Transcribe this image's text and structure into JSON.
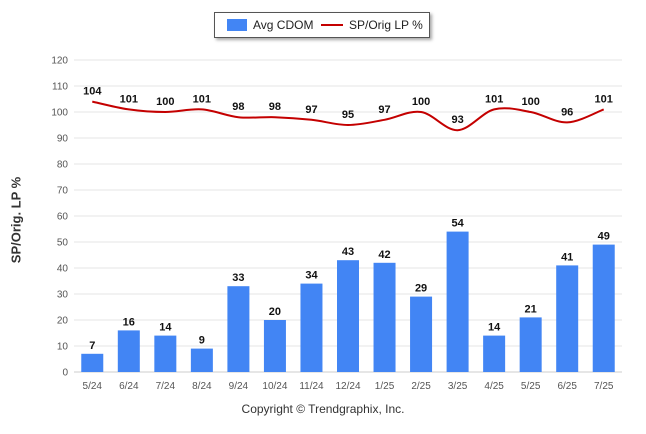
{
  "legend": {
    "bar_label": "Avg CDOM",
    "line_label": "SP/Orig LP %"
  },
  "credits": "Copyright © Trendgraphix, Inc.",
  "colors": {
    "bar": "#4285f4",
    "line": "#c40000",
    "grid": "#e6e6e6",
    "axis_text": "#555555",
    "label_text": "#111111"
  },
  "chart_data": {
    "type": "bar",
    "categories": [
      "5/24",
      "6/24",
      "7/24",
      "8/24",
      "9/24",
      "10/24",
      "11/24",
      "12/24",
      "1/25",
      "2/25",
      "3/25",
      "4/25",
      "5/25",
      "6/25",
      "7/25"
    ],
    "series": [
      {
        "name": "Avg CDOM",
        "type": "bar",
        "values": [
          7,
          16,
          14,
          9,
          33,
          20,
          34,
          43,
          42,
          29,
          54,
          14,
          21,
          41,
          49
        ]
      },
      {
        "name": "SP/Orig LP %",
        "type": "line",
        "values": [
          104,
          101,
          100,
          101,
          98,
          98,
          97,
          95,
          97,
          100,
          93,
          101,
          100,
          96,
          101
        ]
      }
    ],
    "ylabel": "SP/Orig. LP %",
    "ylim": [
      0,
      120
    ],
    "yticks": [
      0,
      10,
      20,
      30,
      40,
      50,
      60,
      70,
      80,
      90,
      100,
      110,
      120
    ],
    "grid": true,
    "legend_position": "top-center"
  }
}
